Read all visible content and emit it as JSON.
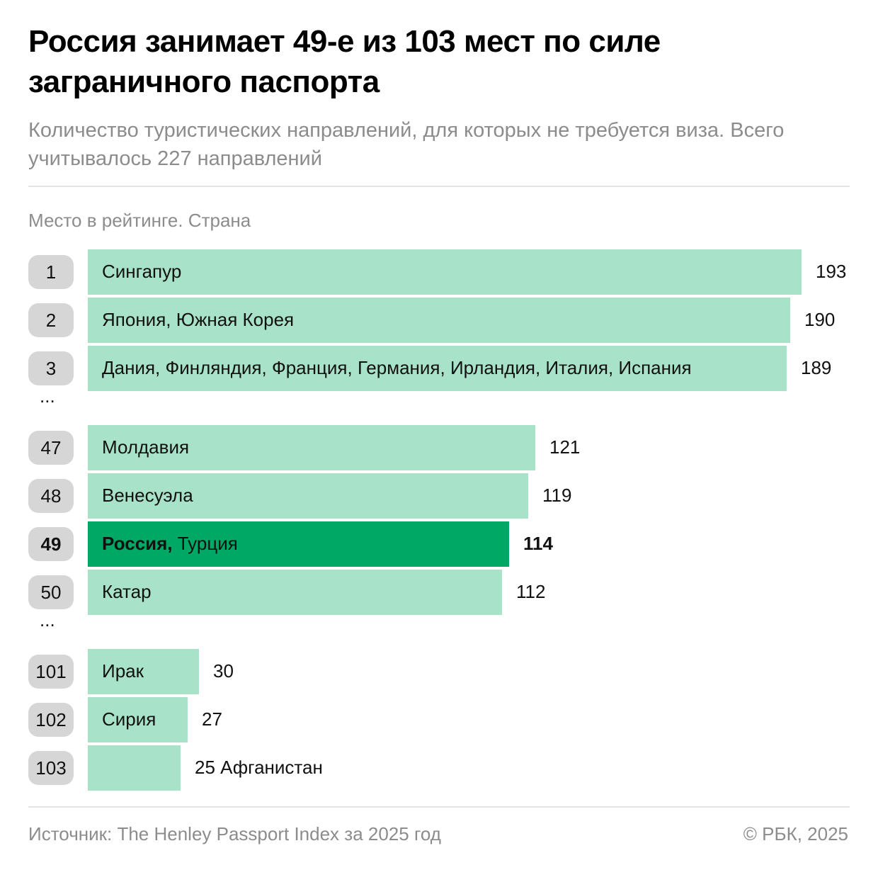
{
  "header": {
    "title": "Россия занимает 49-е из 103 мест по силе заграничного паспорта",
    "subtitle": "Количество туристических направлений, для которых не требуется виза. Всего учитывалось 227 направлений"
  },
  "axis_caption": "Место в рейтинге. Страна",
  "colors": {
    "bar": "#a8e2c8",
    "bar_highlight": "#00a866",
    "rank_badge": "#d6d6d6"
  },
  "chart_data": {
    "type": "bar",
    "orientation": "horizontal",
    "xlim": [
      0,
      193
    ],
    "rows": [
      {
        "rank": "1",
        "country": "Сингапур",
        "value": 193
      },
      {
        "rank": "2",
        "country": "Япония, Южная Корея",
        "value": 190
      },
      {
        "rank": "3",
        "country": "Дания, Финляндия, Франция, Германия, Ирландия, Италия, Испания",
        "value": 189
      },
      {
        "gap": "..."
      },
      {
        "rank": "47",
        "country": "Молдавия",
        "value": 121
      },
      {
        "rank": "48",
        "country": "Венесуэла",
        "value": 119
      },
      {
        "rank": "49",
        "country_bold": "Россия,",
        "country": " Турция",
        "value": 114,
        "highlight": true
      },
      {
        "rank": "50",
        "country": "Катар",
        "value": 112
      },
      {
        "gap": "..."
      },
      {
        "rank": "101",
        "country": "Ирак",
        "value": 30
      },
      {
        "rank": "102",
        "country": "Сирия",
        "value": 27
      },
      {
        "rank": "103",
        "country": "Афганистан",
        "value": 25,
        "label_outside": true
      }
    ]
  },
  "footer": {
    "source": "Источник: The Henley Passport Index за 2025 год",
    "copyright": "© РБК, 2025"
  }
}
